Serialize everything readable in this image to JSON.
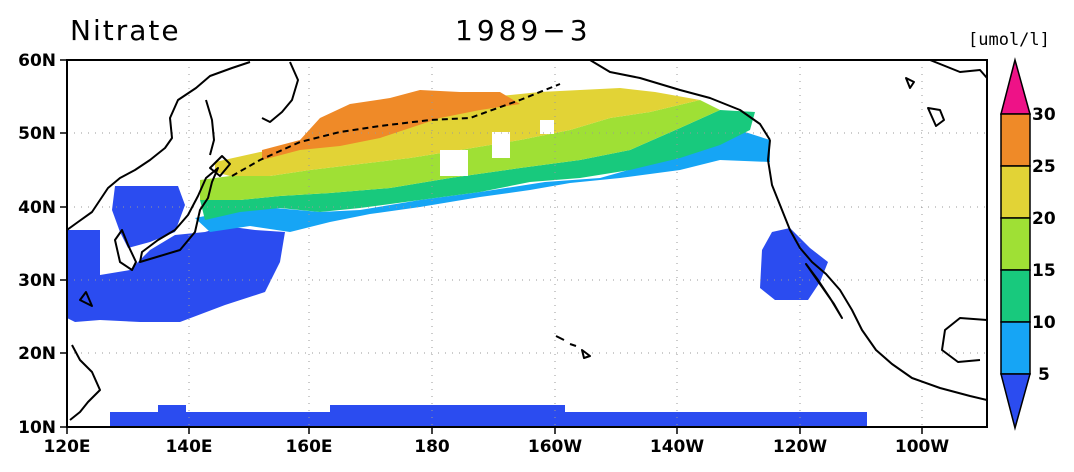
{
  "title": {
    "variable": "Nitrate",
    "date": "1989−3"
  },
  "units": "[umol/l]",
  "map": {
    "lon_range": [
      "120E",
      "90W"
    ],
    "lat_range": [
      "10N",
      "60N"
    ],
    "lon_labels": [
      "120E",
      "140E",
      "160E",
      "180",
      "160W",
      "140W",
      "120W",
      "100W"
    ],
    "lat_labels": [
      "10N",
      "20N",
      "30N",
      "40N",
      "50N",
      "60N"
    ],
    "grid": true
  },
  "colorbar": {
    "labels": [
      "5",
      "10",
      "15",
      "20",
      "25",
      "30"
    ],
    "colors": {
      "lt5": "#2b4cf0",
      "5-10": "#16a5f5",
      "10-15": "#18c97d",
      "15-20": "#9fe035",
      "20-25": "#e2d336",
      "25-30": "#ef8a28",
      "gt30": "#ee1287"
    }
  },
  "colors": {
    "land_outline": "#000000",
    "grid": "#999999",
    "background": "#ffffff"
  }
}
